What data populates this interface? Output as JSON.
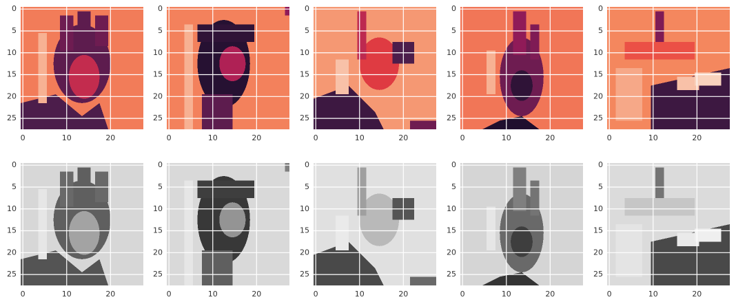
{
  "chart_data": [
    {
      "type": "image",
      "colormap": "rocket",
      "xlim": [
        -0.5,
        27.5
      ],
      "ylim": [
        27.5,
        -0.5
      ],
      "xticks": [
        0,
        10,
        20
      ],
      "yticks": [
        0,
        5,
        10,
        15,
        20,
        25
      ],
      "grid": true
    },
    {
      "type": "image",
      "colormap": "rocket",
      "xlim": [
        -0.5,
        27.5
      ],
      "ylim": [
        27.5,
        -0.5
      ],
      "xticks": [
        0,
        10,
        20
      ],
      "yticks": [
        0,
        5,
        10,
        15,
        20,
        25
      ],
      "grid": true
    },
    {
      "type": "image",
      "colormap": "rocket",
      "xlim": [
        -0.5,
        27.5
      ],
      "ylim": [
        27.5,
        -0.5
      ],
      "xticks": [
        0,
        10,
        20
      ],
      "yticks": [
        0,
        5,
        10,
        15,
        20,
        25
      ],
      "grid": true
    },
    {
      "type": "image",
      "colormap": "rocket",
      "xlim": [
        -0.5,
        27.5
      ],
      "ylim": [
        27.5,
        -0.5
      ],
      "xticks": [
        0,
        10,
        20
      ],
      "yticks": [
        0,
        5,
        10,
        15,
        20,
        25
      ],
      "grid": true
    },
    {
      "type": "image",
      "colormap": "rocket",
      "xlim": [
        -0.5,
        27.5
      ],
      "ylim": [
        27.5,
        -0.5
      ],
      "xticks": [
        0,
        10,
        20
      ],
      "yticks": [
        0,
        5,
        10,
        15,
        20,
        25
      ],
      "grid": true
    },
    {
      "type": "image",
      "colormap": "gray",
      "xlim": [
        -0.5,
        27.5
      ],
      "ylim": [
        27.5,
        -0.5
      ],
      "xticks": [
        0,
        10,
        20
      ],
      "yticks": [
        0,
        5,
        10,
        15,
        20,
        25
      ],
      "grid": true
    },
    {
      "type": "image",
      "colormap": "gray",
      "xlim": [
        -0.5,
        27.5
      ],
      "ylim": [
        27.5,
        -0.5
      ],
      "xticks": [
        0,
        10,
        20
      ],
      "yticks": [
        0,
        5,
        10,
        15,
        20,
        25
      ],
      "grid": true
    },
    {
      "type": "image",
      "colormap": "gray",
      "xlim": [
        -0.5,
        27.5
      ],
      "ylim": [
        27.5,
        -0.5
      ],
      "xticks": [
        0,
        10,
        20
      ],
      "yticks": [
        0,
        5,
        10,
        15,
        20,
        25
      ],
      "grid": true
    },
    {
      "type": "image",
      "colormap": "gray",
      "xlim": [
        -0.5,
        27.5
      ],
      "ylim": [
        27.5,
        -0.5
      ],
      "xticks": [
        0,
        10,
        20
      ],
      "yticks": [
        0,
        5,
        10,
        15,
        20,
        25
      ],
      "grid": true
    },
    {
      "type": "image",
      "colormap": "gray",
      "xlim": [
        -0.5,
        27.5
      ],
      "ylim": [
        27.5,
        -0.5
      ],
      "xticks": [
        0,
        10,
        20
      ],
      "yticks": [
        0,
        5,
        10,
        15,
        20,
        25
      ],
      "grid": true
    }
  ]
}
